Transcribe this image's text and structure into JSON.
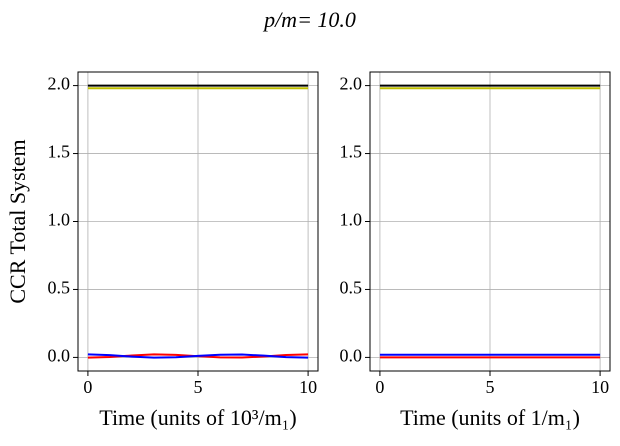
{
  "title": "p/m= 10.0",
  "chart_data": [
    {
      "type": "line",
      "ylabel": "CCR Total System",
      "xlabel": "Time (units of 10³/m₁)",
      "x": [
        0,
        1,
        2,
        3,
        4,
        5,
        6,
        7,
        8,
        9,
        10
      ],
      "series": [
        {
          "color": "#000000",
          "values": [
            2.0,
            2.0,
            2.0,
            2.0,
            2.0,
            2.0,
            2.0,
            2.0,
            2.0,
            2.0,
            2.0
          ]
        },
        {
          "color": "#bfbf00",
          "values": [
            1.98,
            1.98,
            1.98,
            1.98,
            1.98,
            1.98,
            1.98,
            1.98,
            1.98,
            1.98,
            1.98
          ]
        },
        {
          "color": "#ff0000",
          "values": [
            -0.002,
            0.003,
            0.014,
            0.022,
            0.019,
            0.009,
            0.0,
            -0.001,
            0.007,
            0.018,
            0.022
          ]
        },
        {
          "color": "#0000ff",
          "values": [
            0.022,
            0.017,
            0.006,
            -0.002,
            0.001,
            0.011,
            0.02,
            0.021,
            0.013,
            0.002,
            -0.002
          ]
        }
      ],
      "xlim": [
        -0.45,
        10.45
      ],
      "ylim": [
        -0.1,
        2.1
      ],
      "xticks": [
        0,
        5,
        10
      ],
      "yticks": [
        {
          "value": 0,
          "label": "0.0"
        },
        0.5,
        {
          "value": 1,
          "label": "1.0"
        },
        1.5,
        {
          "value": 2,
          "label": "2.0"
        }
      ],
      "grid": true
    },
    {
      "type": "line",
      "xlabel": "Time (units of 1/m₁)",
      "x": [
        0,
        1,
        2,
        3,
        4,
        5,
        6,
        7,
        8,
        9,
        10
      ],
      "series": [
        {
          "color": "#000000",
          "values": [
            2.0,
            2.0,
            2.0,
            2.0,
            2.0,
            2.0,
            2.0,
            2.0,
            2.0,
            2.0,
            2.0
          ]
        },
        {
          "color": "#bfbf00",
          "values": [
            1.98,
            1.98,
            1.98,
            1.98,
            1.98,
            1.98,
            1.98,
            1.98,
            1.98,
            1.98,
            1.98
          ]
        },
        {
          "color": "#ff0000",
          "values": [
            0.0,
            0.0,
            0.0,
            0.0,
            0.0,
            0.0,
            0.0,
            0.0,
            0.0,
            0.0,
            0.0
          ]
        },
        {
          "color": "#0000ff",
          "values": [
            0.02,
            0.02,
            0.02,
            0.02,
            0.02,
            0.02,
            0.02,
            0.02,
            0.02,
            0.02,
            0.02
          ]
        }
      ],
      "xlim": [
        -0.45,
        10.45
      ],
      "ylim": [
        -0.1,
        2.1
      ],
      "xticks": [
        0,
        5,
        10
      ],
      "yticks": [
        {
          "value": 0,
          "label": "0.0"
        },
        0.5,
        {
          "value": 1,
          "label": "1.0"
        },
        1.5,
        {
          "value": 2,
          "label": "2.0"
        }
      ],
      "grid": true
    }
  ]
}
